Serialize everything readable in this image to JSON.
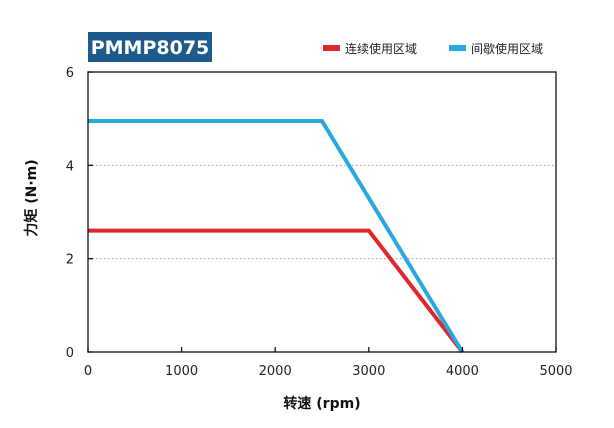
{
  "colors": {
    "continuous": "#e0262e",
    "intermittent": "#29a8df",
    "model_badge_bg": "#1f5a8c",
    "grid": "#9a9a9a",
    "axis": "#111111"
  },
  "chart_data": {
    "type": "line",
    "model": "PMMP8075",
    "xlabel": "转速 (rpm)",
    "ylabel": "力矩 (N·m)",
    "xlim": [
      0,
      5000
    ],
    "ylim": [
      0,
      6
    ],
    "x_ticks": [
      "0",
      "1000",
      "2000",
      "3000",
      "4000",
      "5000"
    ],
    "y_ticks": [
      "0",
      "2",
      "4",
      "6"
    ],
    "grid": "horizontal dotted at y=2 and y=4",
    "legend_position": "top-right",
    "series": [
      {
        "name": "连续使用区域",
        "color_key": "continuous",
        "points": [
          [
            0,
            2.6
          ],
          [
            3000,
            2.6
          ],
          [
            4000,
            0
          ]
        ]
      },
      {
        "name": "间歇使用区域",
        "color_key": "intermittent",
        "points": [
          [
            0,
            4.95
          ],
          [
            2500,
            4.95
          ],
          [
            4000,
            0
          ]
        ]
      }
    ]
  }
}
